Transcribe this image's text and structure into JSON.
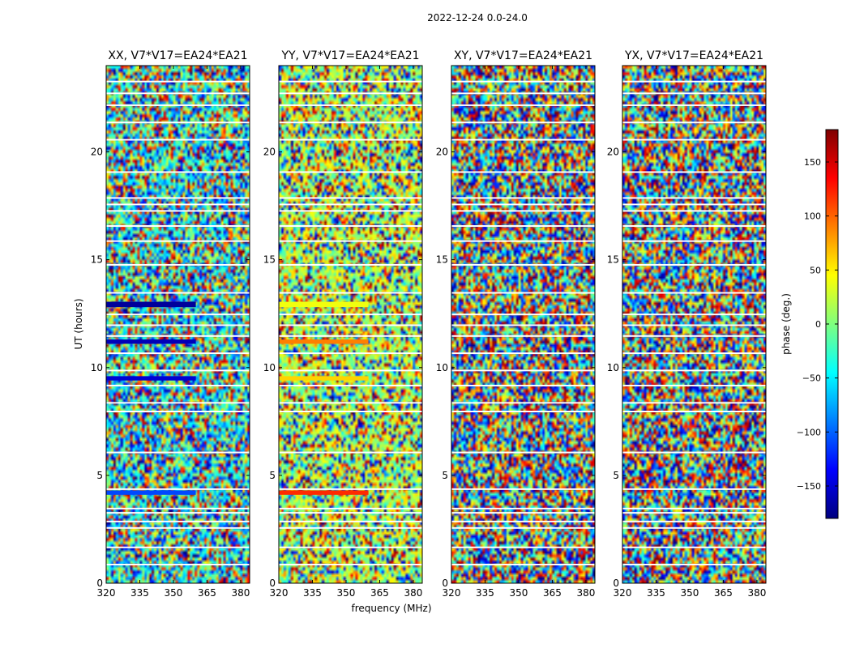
{
  "figure": {
    "suptitle": "2022-12-24 0.0-24.0",
    "xlabel": "frequency (MHz)",
    "ylabel": "UT (hours)"
  },
  "colorbar": {
    "label": "phase (deg.)",
    "range": [
      -180,
      180
    ],
    "ticks": [
      -150,
      -100,
      -50,
      0,
      50,
      100,
      150
    ],
    "tick_labels": [
      "−150",
      "−100",
      "−50",
      "0",
      "50",
      "100",
      "150"
    ],
    "colormap": [
      "#00007f",
      "#0000ff",
      "#007fff",
      "#00ffff",
      "#7fff7f",
      "#ffff00",
      "#ff7f00",
      "#ff0000",
      "#7f0000"
    ]
  },
  "chart_data": [
    {
      "type": "heatmap",
      "title": "XX, V7*V17=EA24*EA21",
      "x_range": [
        320,
        384
      ],
      "y_range": [
        0,
        24
      ],
      "x_ticks": [
        320,
        335,
        350,
        365,
        380
      ],
      "y_ticks": [
        0,
        5,
        10,
        15,
        20
      ],
      "value": "phase (deg.)",
      "coherent_bands": [
        {
          "t0": 12.8,
          "t1": 13.05,
          "f0": 320,
          "f1": 360,
          "phase": -170
        },
        {
          "t0": 11.1,
          "t1": 11.3,
          "f0": 320,
          "f1": 360,
          "phase": -160
        },
        {
          "t0": 9.4,
          "t1": 9.6,
          "f0": 320,
          "f1": 360,
          "phase": -150
        },
        {
          "t0": 4.1,
          "t1": 4.3,
          "f0": 320,
          "f1": 360,
          "phase": -110
        }
      ]
    },
    {
      "type": "heatmap",
      "title": "YY, V7*V17=EA24*EA21",
      "x_range": [
        320,
        384
      ],
      "y_range": [
        0,
        24
      ],
      "x_ticks": [
        320,
        335,
        350,
        365,
        380
      ],
      "y_ticks": [
        0,
        5,
        10,
        15,
        20
      ],
      "value": "phase (deg.)",
      "coherent_bands": [
        {
          "t0": 12.8,
          "t1": 13.05,
          "f0": 320,
          "f1": 360,
          "phase": 40
        },
        {
          "t0": 11.1,
          "t1": 11.3,
          "f0": 320,
          "f1": 360,
          "phase": 90
        },
        {
          "t0": 9.4,
          "t1": 9.6,
          "f0": 320,
          "f1": 360,
          "phase": 60
        },
        {
          "t0": 4.1,
          "t1": 4.3,
          "f0": 320,
          "f1": 360,
          "phase": 120
        }
      ]
    },
    {
      "type": "heatmap",
      "title": "XY, V7*V17=EA24*EA21",
      "x_range": [
        320,
        384
      ],
      "y_range": [
        0,
        24
      ],
      "x_ticks": [
        320,
        335,
        350,
        365,
        380
      ],
      "y_ticks": [
        0,
        5,
        10,
        15,
        20
      ],
      "value": "phase (deg.)",
      "coherent_bands": []
    },
    {
      "type": "heatmap",
      "title": "YX, V7*V17=EA24*EA21",
      "x_range": [
        320,
        384
      ],
      "y_range": [
        0,
        24
      ],
      "x_ticks": [
        320,
        335,
        350,
        365,
        380
      ],
      "y_ticks": [
        0,
        5,
        10,
        15,
        20
      ],
      "value": "phase (deg.)",
      "coherent_bands": []
    }
  ]
}
